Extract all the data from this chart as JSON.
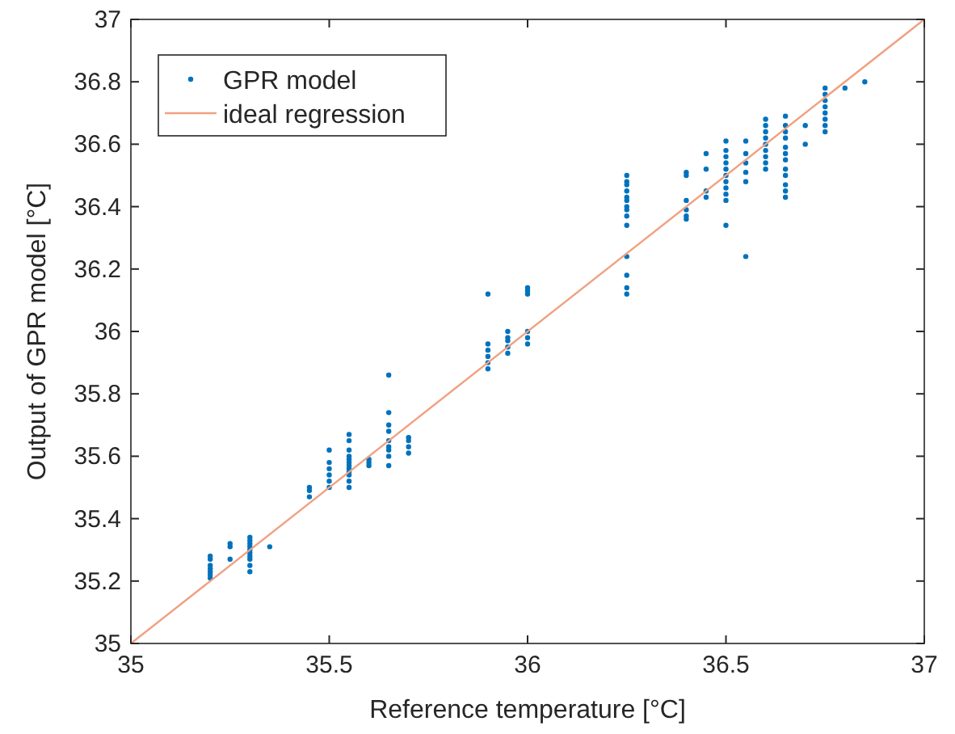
{
  "chart_data": {
    "type": "scatter",
    "xlabel": "Reference temperature [°C]",
    "ylabel": "Output of GPR model [°C]",
    "xlim": [
      35,
      37
    ],
    "ylim": [
      35,
      37
    ],
    "xticks": [
      35,
      35.5,
      36,
      36.5,
      37
    ],
    "yticks": [
      35,
      35.2,
      35.4,
      35.6,
      35.8,
      36,
      36.2,
      36.4,
      36.6,
      36.8,
      37
    ],
    "grid": false,
    "legend": "top left",
    "series": [
      {
        "name": "GPR model",
        "type": "scatter",
        "color": "#0072bd",
        "marker": "circle",
        "x": [
          35.2,
          35.2,
          35.2,
          35.2,
          35.2,
          35.2,
          35.2,
          35.25,
          35.25,
          35.25,
          35.3,
          35.3,
          35.3,
          35.3,
          35.3,
          35.3,
          35.3,
          35.3,
          35.3,
          35.3,
          35.35,
          35.45,
          35.45,
          35.45,
          35.5,
          35.5,
          35.5,
          35.5,
          35.5,
          35.5,
          35.55,
          35.55,
          35.55,
          35.55,
          35.55,
          35.55,
          35.55,
          35.55,
          35.55,
          35.55,
          35.55,
          35.55,
          35.6,
          35.6,
          35.6,
          35.65,
          35.65,
          35.65,
          35.65,
          35.65,
          35.65,
          35.65,
          35.65,
          35.65,
          35.7,
          35.7,
          35.7,
          35.7,
          35.9,
          35.9,
          35.9,
          35.9,
          35.9,
          35.9,
          35.95,
          35.95,
          35.95,
          35.95,
          35.95,
          36,
          36,
          36,
          36,
          36,
          36,
          36.25,
          36.25,
          36.25,
          36.25,
          36.25,
          36.25,
          36.25,
          36.25,
          36.25,
          36.25,
          36.25,
          36.25,
          36.25,
          36.25,
          36.4,
          36.4,
          36.4,
          36.4,
          36.4,
          36.4,
          36.45,
          36.45,
          36.45,
          36.45,
          36.5,
          36.5,
          36.5,
          36.5,
          36.5,
          36.5,
          36.5,
          36.5,
          36.5,
          36.5,
          36.5,
          36.55,
          36.55,
          36.55,
          36.55,
          36.55,
          36.55,
          36.6,
          36.6,
          36.6,
          36.6,
          36.6,
          36.6,
          36.6,
          36.6,
          36.6,
          36.65,
          36.65,
          36.65,
          36.65,
          36.65,
          36.65,
          36.65,
          36.65,
          36.65,
          36.65,
          36.65,
          36.65,
          36.7,
          36.7,
          36.75,
          36.75,
          36.75,
          36.75,
          36.75,
          36.75,
          36.75,
          36.75,
          36.8,
          36.85
        ],
        "values": [
          35.21,
          35.22,
          35.23,
          35.24,
          35.25,
          35.27,
          35.28,
          35.27,
          35.31,
          35.32,
          35.23,
          35.25,
          35.27,
          35.28,
          35.29,
          35.3,
          35.31,
          35.32,
          35.33,
          35.34,
          35.31,
          35.47,
          35.49,
          35.5,
          35.5,
          35.52,
          35.54,
          35.56,
          35.58,
          35.62,
          35.5,
          35.52,
          35.54,
          35.55,
          35.56,
          35.57,
          35.58,
          35.59,
          35.6,
          35.62,
          35.65,
          35.67,
          35.57,
          35.58,
          35.59,
          35.57,
          35.6,
          35.62,
          35.63,
          35.65,
          35.68,
          35.7,
          35.74,
          35.86,
          35.61,
          35.63,
          35.65,
          35.66,
          35.88,
          35.9,
          35.92,
          35.94,
          35.96,
          36.12,
          35.93,
          35.95,
          35.97,
          35.98,
          36,
          35.96,
          35.98,
          36,
          36.12,
          36.13,
          36.14,
          36.12,
          36.14,
          36.18,
          36.24,
          36.34,
          36.37,
          36.39,
          36.4,
          36.42,
          36.43,
          36.45,
          36.47,
          36.48,
          36.5,
          36.36,
          36.37,
          36.39,
          36.42,
          36.5,
          36.51,
          36.43,
          36.45,
          36.52,
          36.57,
          36.34,
          36.42,
          36.44,
          36.46,
          36.48,
          36.5,
          36.52,
          36.54,
          36.56,
          36.58,
          36.61,
          36.24,
          36.48,
          36.51,
          36.54,
          36.57,
          36.61,
          36.52,
          36.54,
          36.56,
          36.58,
          36.6,
          36.62,
          36.64,
          36.66,
          36.68,
          36.43,
          36.45,
          36.47,
          36.5,
          36.52,
          36.55,
          36.57,
          36.59,
          36.62,
          36.64,
          36.66,
          36.69,
          36.6,
          36.66,
          36.64,
          36.66,
          36.68,
          36.7,
          36.72,
          36.74,
          36.76,
          36.78,
          36.78,
          36.8
        ]
      },
      {
        "name": "ideal regression",
        "type": "line",
        "color": "#f0a080",
        "x": [
          35,
          37
        ],
        "values": [
          35,
          37
        ]
      }
    ]
  }
}
